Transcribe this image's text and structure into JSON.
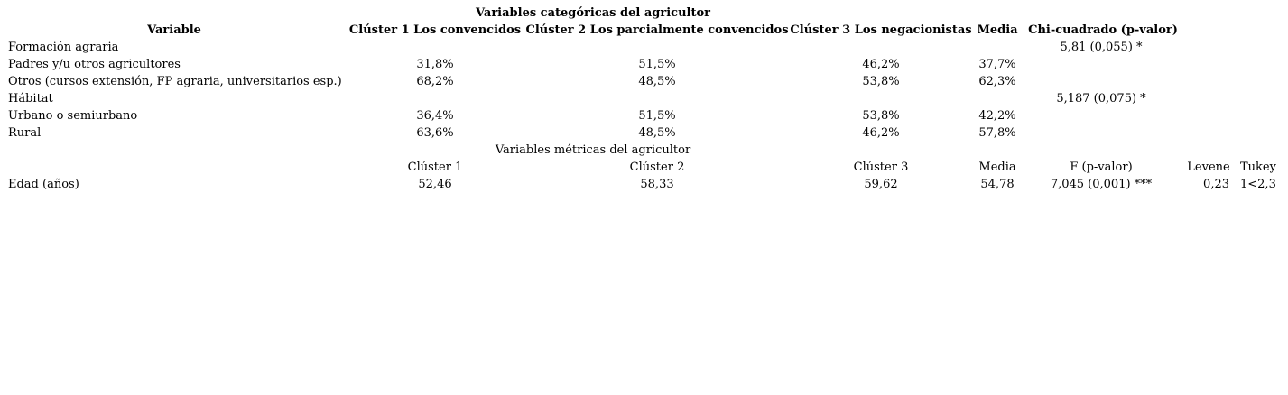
{
  "title_categorical": "Variables categóricas del agricultor",
  "header": {
    "variable": "Variable",
    "cluster1": "Clúster 1 Los convencidos",
    "cluster2": "Clúster 2 Los parcialmente convencidos",
    "cluster3": "Clúster 3 Los negacionistas",
    "media": "Media",
    "chi": "Chi-cuadrado (p-valor)"
  },
  "categorical_rows": [
    {
      "label": "Formación agraria",
      "c1": "",
      "c2": "",
      "c3": "",
      "media": "",
      "chi": "5,81 (0,055) *"
    },
    {
      "label": "Padres y/u otros agricultores",
      "c1": "31,8%",
      "c2": "51,5%",
      "c3": "46,2%",
      "media": "37,7%",
      "chi": ""
    },
    {
      "label": "Otros (cursos extensión, FP agraria, universitarios esp.)",
      "c1": "68,2%",
      "c2": "48,5%",
      "c3": "53,8%",
      "media": "62,3%",
      "chi": ""
    },
    {
      "label": "Hábitat",
      "c1": "",
      "c2": "",
      "c3": "",
      "media": "",
      "chi": "5,187 (0,075) *"
    },
    {
      "label": "Urbano o semiurbano",
      "c1": "36,4%",
      "c2": "51,5%",
      "c3": "53,8%",
      "media": "42,2%",
      "chi": ""
    },
    {
      "label": "Rural",
      "c1": "63,6%",
      "c2": "48,5%",
      "c3": "46,2%",
      "media": "57,8%",
      "chi": ""
    }
  ],
  "title_metric": "Variables métricas del agricultor",
  "metric_header": {
    "cluster1": "Clúster 1",
    "cluster2": "Clúster 2",
    "cluster3": "Clúster 3",
    "media": "Media",
    "f": "F (p-valor)",
    "levene": "Levene",
    "tukey": "Tukey"
  },
  "metric_rows": [
    {
      "label": "Edad (años)",
      "c1": "52,46",
      "c2": "58,33",
      "c3": "59,62",
      "media": "54,78",
      "f": "7,045 (0,001) ***",
      "levene": "0,23",
      "tukey": "1<2,3"
    }
  ]
}
